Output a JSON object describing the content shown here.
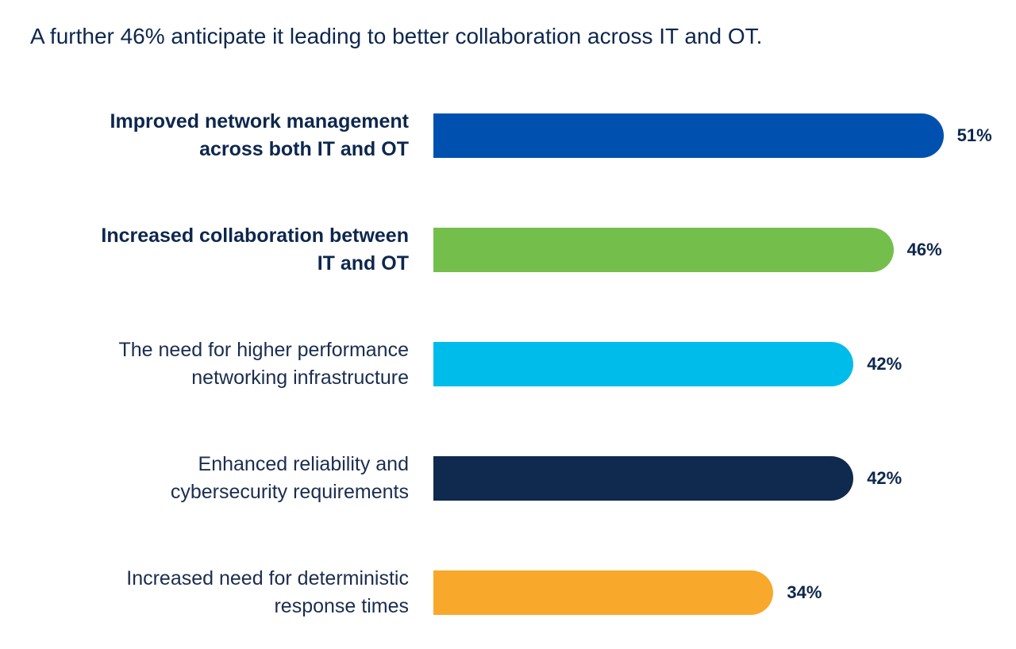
{
  "chart_data": {
    "type": "bar",
    "orientation": "horizontal",
    "title": "A further 46% anticipate it leading to better collaboration across IT and OT.",
    "categories": [
      "Improved network management across both IT and OT",
      "Increased collaboration between IT and OT",
      "The need for higher performance networking infrastructure",
      "Enhanced reliability and cybersecurity requirements",
      "Increased need for deterministic response times"
    ],
    "values": [
      51,
      46,
      42,
      42,
      34
    ],
    "value_labels": [
      "51%",
      "46%",
      "42%",
      "42%",
      "34%"
    ],
    "colors": [
      "#0051af",
      "#74bf4b",
      "#00bceb",
      "#0f2a4e",
      "#f8a82b"
    ],
    "highlighted": [
      true,
      true,
      false,
      false,
      false
    ]
  }
}
